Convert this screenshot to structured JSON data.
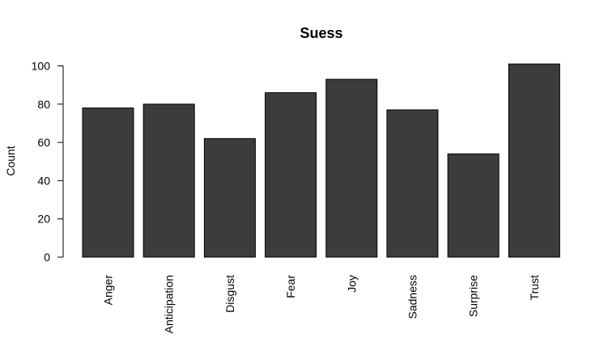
{
  "chart_data": {
    "type": "bar",
    "title": "Suess",
    "xlabel": "",
    "ylabel": "Count",
    "categories": [
      "Anger",
      "Anticipation",
      "Disgust",
      "Fear",
      "Joy",
      "Sadness",
      "Surprise",
      "Trust"
    ],
    "values": [
      78,
      80,
      62,
      86,
      93,
      77,
      54,
      101
    ],
    "ylim": [
      0,
      100
    ],
    "yticks": [
      0,
      20,
      40,
      60,
      80,
      100
    ],
    "grid": false,
    "legend": "none",
    "bar_color": "#3c3c3c",
    "bar_edge_color": "#000000"
  }
}
